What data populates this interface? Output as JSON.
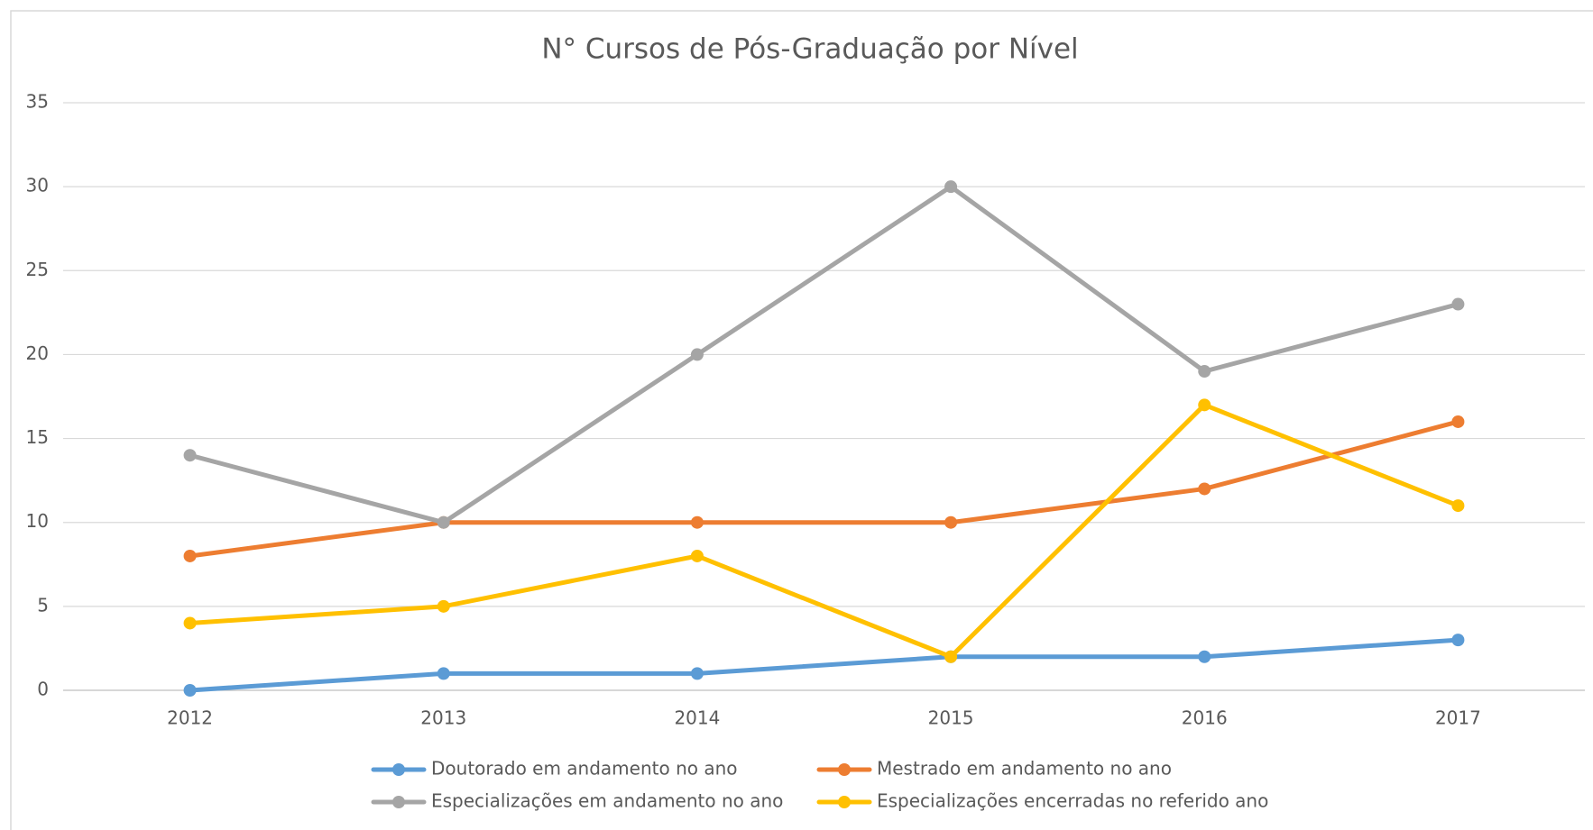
{
  "chart_data": {
    "type": "line",
    "title": "N° Cursos de Pós-Graduação por Nível",
    "categories": [
      "2012",
      "2013",
      "2014",
      "2015",
      "2016",
      "2017"
    ],
    "series": [
      {
        "name": "Doutorado em andamento no ano",
        "color": "#5b9bd5",
        "values": [
          0,
          1,
          1,
          2,
          2,
          3
        ]
      },
      {
        "name": "Mestrado em andamento no ano",
        "color": "#ed7d31",
        "values": [
          8,
          10,
          10,
          10,
          12,
          16
        ]
      },
      {
        "name": "Especializações em andamento no ano",
        "color": "#a5a5a5",
        "values": [
          14,
          10,
          20,
          30,
          19,
          23
        ]
      },
      {
        "name": "Especializações encerradas no referido ano",
        "color": "#ffc000",
        "values": [
          4,
          5,
          8,
          2,
          17,
          11
        ]
      }
    ],
    "ylim": [
      0,
      35
    ],
    "yticks": [
      0,
      5,
      10,
      15,
      20,
      25,
      30,
      35
    ],
    "grid": true,
    "legend": "bottom"
  }
}
